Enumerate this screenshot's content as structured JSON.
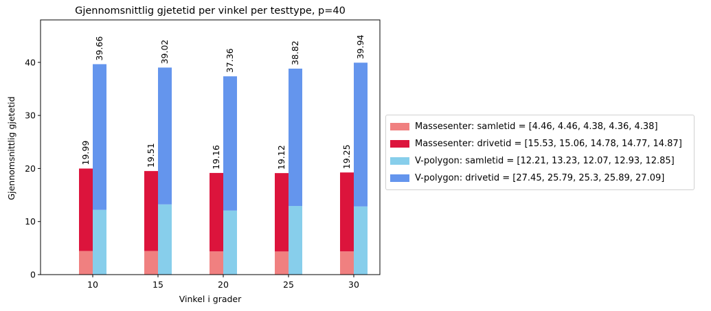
{
  "chart_data": {
    "type": "bar",
    "title": "Gjennomsnittlig gjetetid per vinkel per testtype, p=40",
    "xlabel": "Vinkel i grader",
    "ylabel": "Gjennomsnittlig gjetetid",
    "categories": [
      "10",
      "15",
      "20",
      "25",
      "30"
    ],
    "ylim": [
      0,
      48
    ],
    "yticks": [
      "0",
      "10",
      "20",
      "30",
      "40"
    ],
    "grid": false,
    "legend_position": "center-left outside right",
    "groups": [
      {
        "name": "Massesenter",
        "totals": [
          "19.99",
          "19.51",
          "19.16",
          "19.12",
          "19.25"
        ],
        "series": [
          {
            "name": "Massesenter: samletid = [4.46, 4.46, 4.38, 4.36, 4.38]",
            "values": [
              4.46,
              4.46,
              4.38,
              4.36,
              4.38
            ],
            "color": "#f08080"
          },
          {
            "name": "Massesenter: drivetid = [15.53, 15.06, 14.78, 14.77, 14.87]",
            "values": [
              15.53,
              15.06,
              14.78,
              14.77,
              14.87
            ],
            "color": "#dc143c"
          }
        ]
      },
      {
        "name": "V-polygon",
        "totals": [
          "39.66",
          "39.02",
          "37.36",
          "38.82",
          "39.94"
        ],
        "series": [
          {
            "name": "V-polygon: samletid = [12.21, 13.23, 12.07, 12.93, 12.85]",
            "values": [
              12.21,
              13.23,
              12.07,
              12.93,
              12.85
            ],
            "color": "#87ceeb"
          },
          {
            "name": "V-polygon: drivetid = [27.45, 25.79, 25.3, 25.89, 27.09]",
            "values": [
              27.45,
              25.79,
              25.3,
              25.89,
              27.09
            ],
            "color": "#6495ed"
          }
        ]
      }
    ]
  }
}
